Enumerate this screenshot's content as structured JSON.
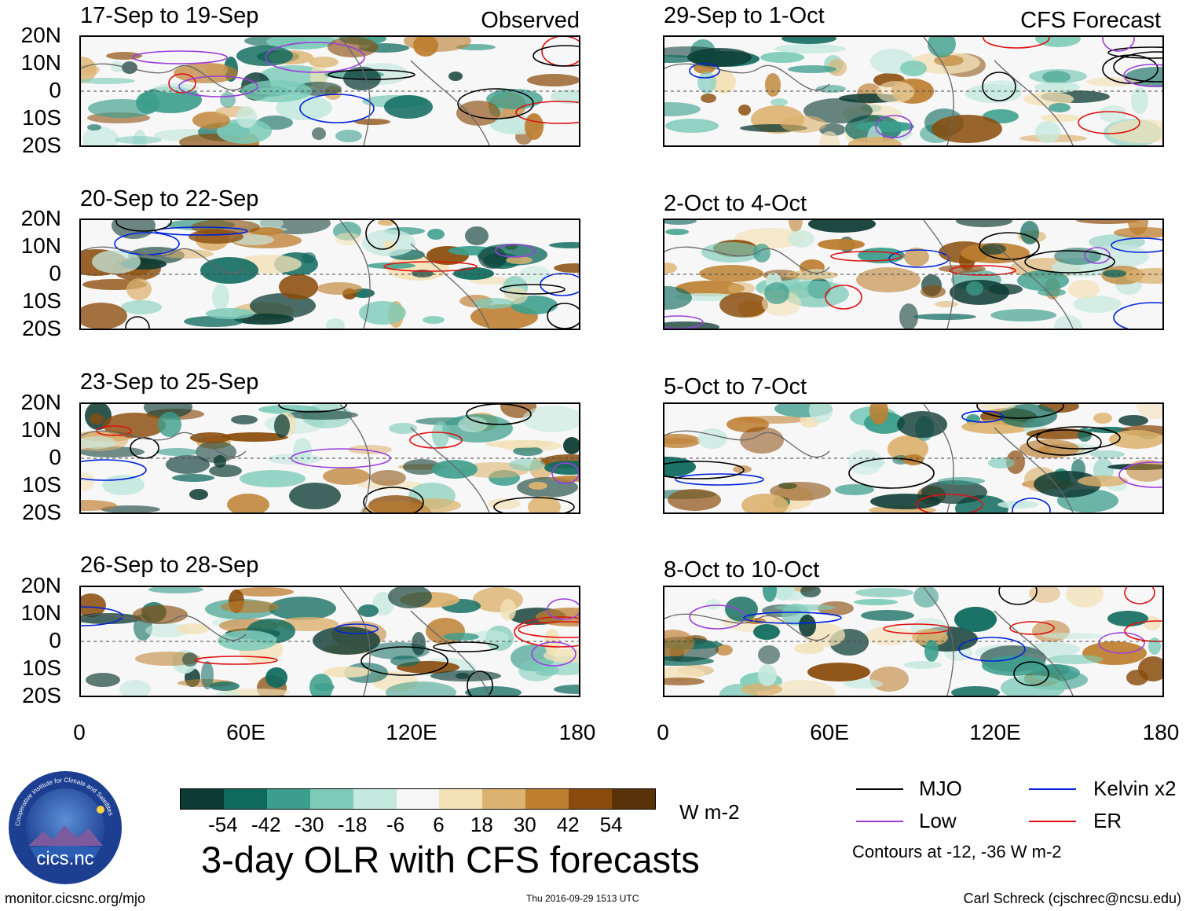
{
  "panels_left": {
    "tag": "Observed",
    "items": [
      {
        "title": "17-Sep to 19-Sep"
      },
      {
        "title": "20-Sep to 22-Sep"
      },
      {
        "title": "23-Sep to 25-Sep"
      },
      {
        "title": "26-Sep to 28-Sep"
      }
    ]
  },
  "panels_right": {
    "tag": "CFS Forecast",
    "items": [
      {
        "title": "29-Sep to 1-Oct"
      },
      {
        "title": "2-Oct to 4-Oct"
      },
      {
        "title": "5-Oct to 7-Oct"
      },
      {
        "title": "8-Oct to 10-Oct"
      }
    ]
  },
  "lat_labels": [
    "20N",
    "10N",
    "0",
    "10S",
    "20S"
  ],
  "lon_labels": [
    "0",
    "60E",
    "120E",
    "180"
  ],
  "colorbar": {
    "labels": [
      "-54",
      "-42",
      "-30",
      "-18",
      "-6",
      "6",
      "18",
      "30",
      "42",
      "54"
    ],
    "colors": [
      "#0d3b33",
      "#0f6a5e",
      "#3c9e8c",
      "#7dcbb8",
      "#c6e9df",
      "#f6f6f6",
      "#f3e1b6",
      "#dcb26e",
      "#bd7e2f",
      "#8a4c0c",
      "#5a3209"
    ],
    "units": "W m-2"
  },
  "main_title": "3-day OLR with CFS forecasts",
  "legend": {
    "items": [
      {
        "label": "MJO",
        "color": "#000000"
      },
      {
        "label": "Kelvin x2",
        "color": "#0022dd"
      },
      {
        "label": "Low",
        "color": "#9b3fdc"
      },
      {
        "label": "ER",
        "color": "#e01010"
      }
    ],
    "note": "Contours at -12, -36 W m-2"
  },
  "logo_text": "cics.nc",
  "logo_ring_text": "Cooperative Institute for Climate and Satellites",
  "footer": {
    "left": "monitor.cicsnc.org/mjo",
    "center": "Thu 2016-09-29 1513 UTC",
    "right": "Carl Schreck (cjschrec@ncsu.edu)"
  }
}
